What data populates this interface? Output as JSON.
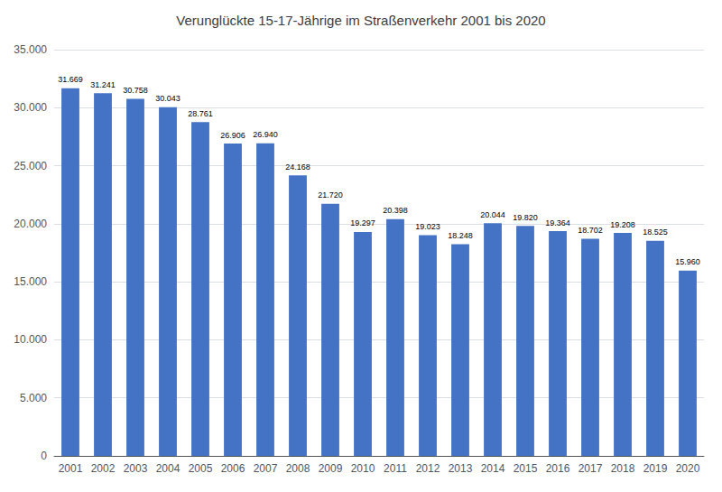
{
  "chart_data": {
    "type": "bar",
    "title": "Verunglückte 15-17-Jährige im Straßenverkehr 2001 bis 2020",
    "categories": [
      "2001",
      "2002",
      "2003",
      "2004",
      "2005",
      "2006",
      "2007",
      "2008",
      "2009",
      "2010",
      "2011",
      "2012",
      "2013",
      "2014",
      "2015",
      "2016",
      "2017",
      "2018",
      "2019",
      "2020"
    ],
    "values": [
      31669,
      31241,
      30758,
      30043,
      28761,
      26906,
      26940,
      24168,
      21720,
      19297,
      20398,
      19023,
      18248,
      20044,
      19820,
      19364,
      18702,
      19208,
      18525,
      15960
    ],
    "value_labels": [
      "31.669",
      "31.241",
      "30.758",
      "30.043",
      "28.761",
      "26.906",
      "26.940",
      "24.168",
      "21.720",
      "19.297",
      "20.398",
      "19.023",
      "18.248",
      "20.044",
      "19.820",
      "19.364",
      "18.702",
      "19.208",
      "18.525",
      "15.960"
    ],
    "color": "#4472C4",
    "ylim": [
      0,
      35000
    ],
    "yticks": [
      0,
      {
        "value": 5000,
        "label": "5.000"
      },
      {
        "value": 10000,
        "label": "10.000"
      },
      {
        "value": 15000,
        "label": "15.000"
      },
      {
        "value": 20000,
        "label": "20.000"
      },
      {
        "value": 25000,
        "label": "25.000"
      },
      {
        "value": 30000,
        "label": "30.000"
      },
      {
        "value": 35000,
        "label": "35.000"
      }
    ],
    "grid": true,
    "data_labels": true
  }
}
